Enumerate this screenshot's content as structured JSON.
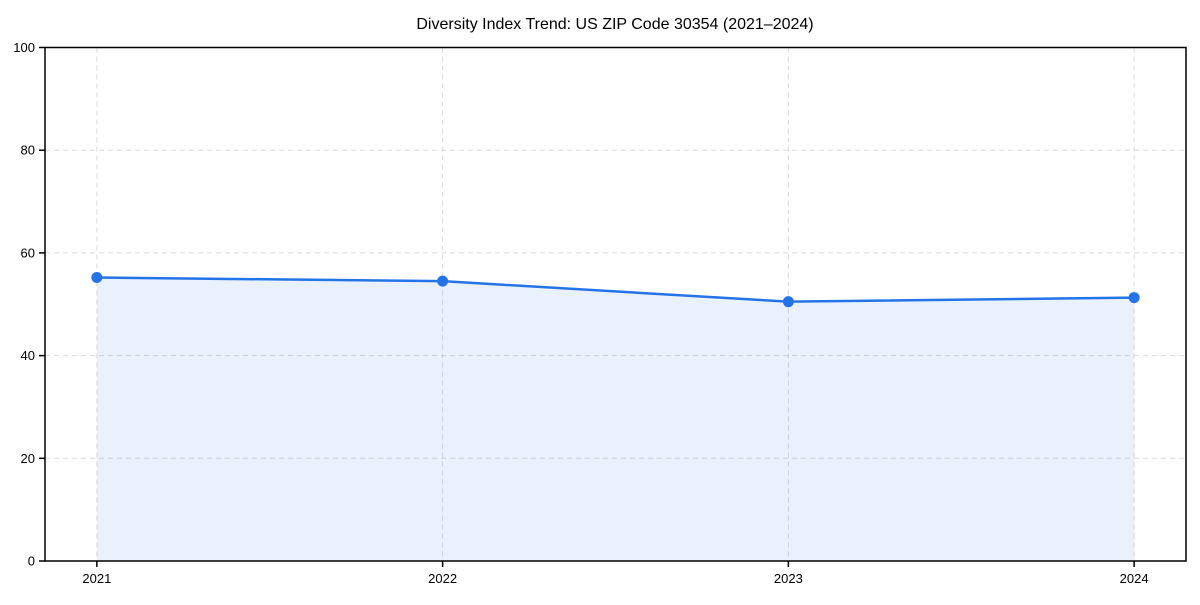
{
  "chart_data": {
    "type": "line",
    "title": "Diversity Index Trend: US ZIP Code 30354 (2021–2024)",
    "x": [
      "2021",
      "2022",
      "2023",
      "2024"
    ],
    "series": [
      {
        "name": "Diversity Index",
        "values": [
          55.2,
          54.5,
          50.5,
          51.3
        ]
      }
    ],
    "values": [
      55.2,
      54.5,
      50.5,
      51.3
    ],
    "xlabel": "",
    "ylabel": "",
    "ylim": [
      0,
      100
    ],
    "yticks": [
      0,
      20,
      40,
      60,
      80,
      100
    ],
    "grid": true,
    "grid_style": "dashed",
    "legend": "none",
    "area": true,
    "marker": "circle",
    "colors": {
      "line": "#2474e8",
      "fill": "rgba(36,116,232,0.10)",
      "grid": "#dbdbdb",
      "axis": "#000000",
      "background": "#ffffff"
    }
  }
}
